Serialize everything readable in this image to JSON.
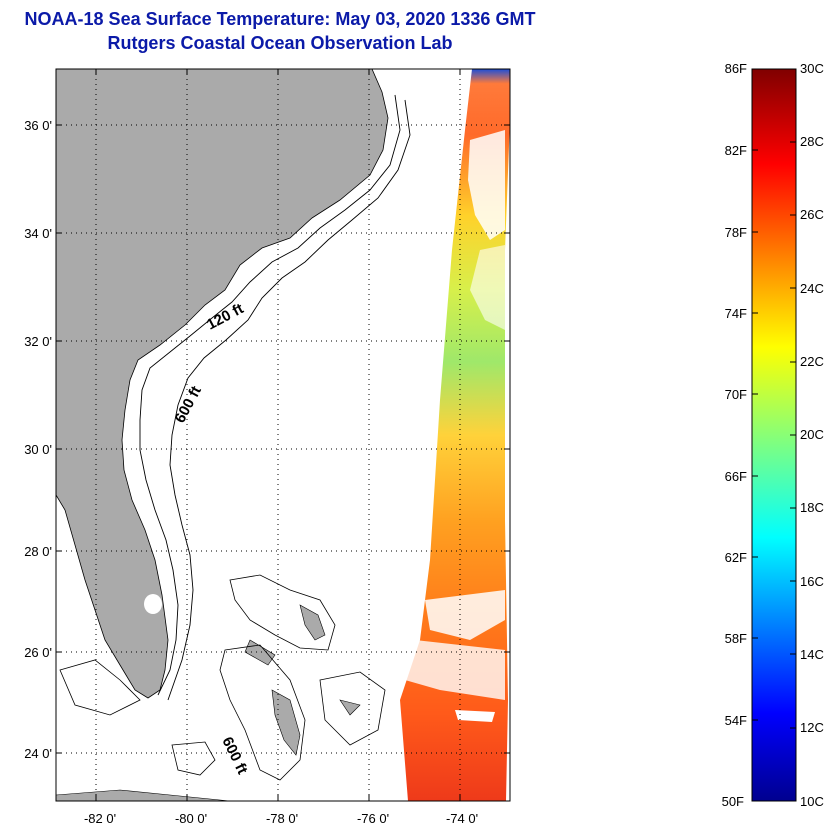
{
  "title": {
    "line1": "NOAA-18 Sea Surface Temperature:  May 03, 2020 1336 GMT",
    "line2": "Rutgers Coastal Ocean Observation Lab"
  },
  "map": {
    "lon_range": [
      -83,
      -73
    ],
    "lat_range": [
      23,
      37
    ],
    "lat_ticks": [
      {
        "value": 36,
        "label": "36 0'"
      },
      {
        "value": 34,
        "label": "34 0'"
      },
      {
        "value": 32,
        "label": "32 0'"
      },
      {
        "value": 30,
        "label": "30 0'"
      },
      {
        "value": 28,
        "label": "28 0'"
      },
      {
        "value": 26,
        "label": "26 0'"
      },
      {
        "value": 24,
        "label": "24 0'"
      }
    ],
    "lon_ticks": [
      {
        "value": -82,
        "label": "-82 0'"
      },
      {
        "value": -80,
        "label": "-80 0'"
      },
      {
        "value": -78,
        "label": "-78 0'"
      },
      {
        "value": -76,
        "label": "-76 0'"
      },
      {
        "value": -74,
        "label": "-74 0'"
      }
    ],
    "contour_labels": [
      "120 ft",
      "600 ft",
      "600 ft"
    ],
    "colors": {
      "land": "#aaaaaa",
      "water": "#ffffff",
      "grid": "#000000"
    }
  },
  "colorbar": {
    "f_labels": [
      "86F",
      "82F",
      "78F",
      "74F",
      "70F",
      "66F",
      "62F",
      "58F",
      "54F",
      "50F"
    ],
    "c_labels": [
      "30C",
      "28C",
      "26C",
      "24C",
      "22C",
      "20C",
      "18C",
      "16C",
      "14C",
      "12C",
      "10C"
    ],
    "c_range": [
      10,
      30
    ],
    "colormap": "jet"
  }
}
